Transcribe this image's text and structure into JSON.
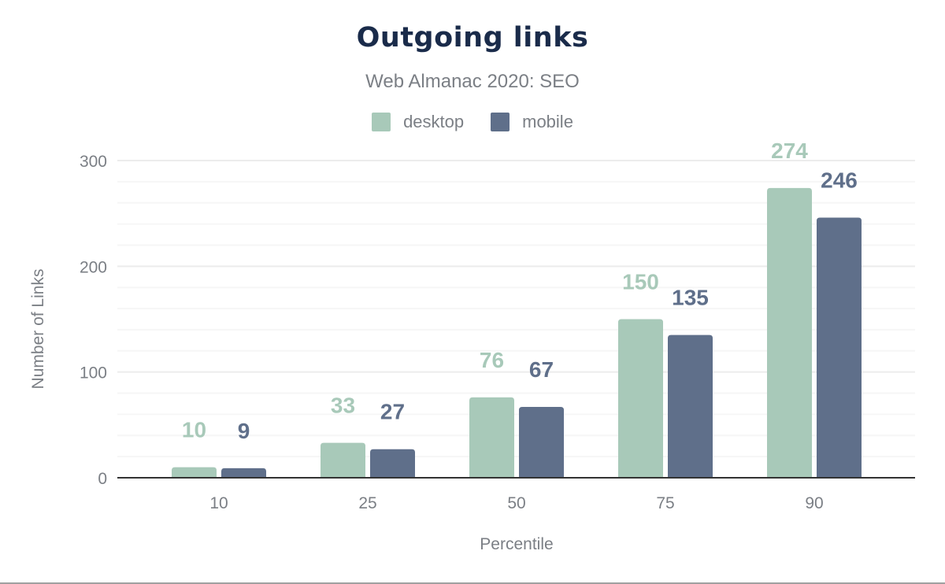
{
  "chart_data": {
    "type": "bar",
    "title": "Outgoing links",
    "subtitle": "Web Almanac 2020: SEO",
    "xlabel": "Percentile",
    "ylabel": "Number of Links",
    "categories": [
      "10",
      "25",
      "50",
      "75",
      "90"
    ],
    "series": [
      {
        "name": "desktop",
        "color": "#a8c9b9",
        "values": [
          10,
          33,
          76,
          150,
          274
        ]
      },
      {
        "name": "mobile",
        "color": "#5f6f8a",
        "values": [
          9,
          27,
          67,
          135,
          246
        ]
      }
    ],
    "ylim": [
      0,
      300
    ],
    "yticks": [
      "0",
      "100",
      "200",
      "300"
    ],
    "grid": true,
    "legend": "top-center",
    "data_labels": true
  }
}
